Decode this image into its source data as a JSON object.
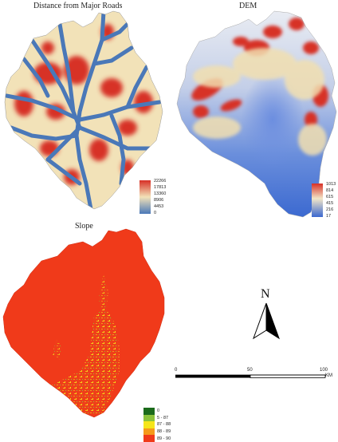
{
  "panels": {
    "roads": {
      "title": "Distance from Major Roads",
      "legend_labels": [
        "22266",
        "17813",
        "13360",
        "8906",
        "4453",
        "0"
      ],
      "colors": {
        "high": "#d73027",
        "mid": "#f2e2b8",
        "low": "#4a78b8"
      }
    },
    "dem": {
      "title": "DEM",
      "legend_labels": [
        "1013",
        "814",
        "615",
        "415",
        "216",
        "17"
      ],
      "colors": {
        "high": "#d73027",
        "mid": "#f2e6c8",
        "low": "#3a68d0"
      }
    },
    "slope": {
      "title": "Slope",
      "classes": [
        {
          "label": "0",
          "color": "#1b6b1b"
        },
        {
          "label": "5 - 87",
          "color": "#8bc33a"
        },
        {
          "label": "87 - 88",
          "color": "#f5e51a"
        },
        {
          "label": "88 - 89",
          "color": "#f59a1a"
        },
        {
          "label": "89 - 90",
          "color": "#f03a1a"
        }
      ]
    }
  },
  "north_arrow": {
    "label": "N"
  },
  "scale_bar": {
    "labels": [
      "0",
      "50",
      "100"
    ],
    "unit": "KM"
  }
}
